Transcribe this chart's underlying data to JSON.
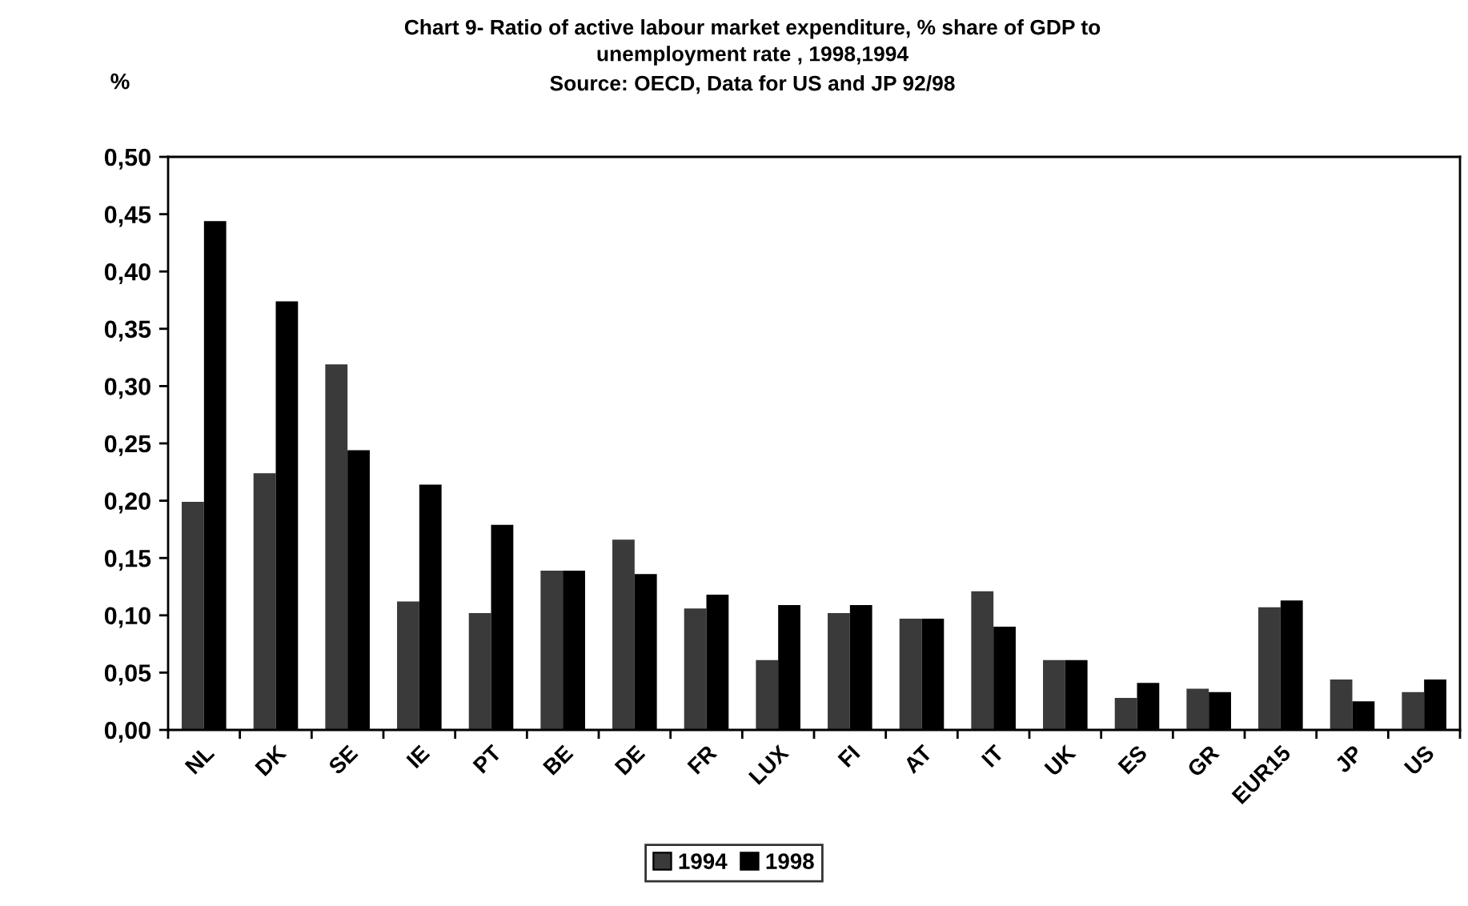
{
  "chart_data": {
    "type": "bar",
    "title": "Chart 9- Ratio of active labour market expenditure, % share of GDP to\nunemployment rate , 1998,1994",
    "subtitle": "Source: OECD, Data for US and JP 92/98",
    "ylabel": "%",
    "categories": [
      "NL",
      "DK",
      "SE",
      "IE",
      "PT",
      "BE",
      "DE",
      "FR",
      "LUX",
      "FI",
      "AT",
      "IT",
      "UK",
      "ES",
      "GR",
      "EUR15",
      "JP",
      "US"
    ],
    "series": [
      {
        "name": "1994",
        "color": "#3a3a3a",
        "values": [
          0.199,
          0.224,
          0.319,
          0.112,
          0.102,
          0.139,
          0.166,
          0.106,
          0.061,
          0.102,
          0.097,
          0.121,
          0.061,
          0.028,
          0.036,
          0.107,
          0.044,
          0.033
        ]
      },
      {
        "name": "1998",
        "color": "#000000",
        "values": [
          0.444,
          0.374,
          0.244,
          0.214,
          0.179,
          0.139,
          0.136,
          0.118,
          0.109,
          0.109,
          0.097,
          0.09,
          0.061,
          0.041,
          0.033,
          0.113,
          0.025,
          0.044
        ]
      }
    ],
    "ylim": [
      0,
      0.5
    ],
    "yticks": [
      {
        "value": 0,
        "label": "0,00"
      },
      {
        "value": 0.05,
        "label": "0,05"
      },
      {
        "value": 0.1,
        "label": "0,10"
      },
      {
        "value": 0.15,
        "label": "0,15"
      },
      {
        "value": 0.2,
        "label": "0,20"
      },
      {
        "value": 0.25,
        "label": "0,25"
      },
      {
        "value": 0.3,
        "label": "0,30"
      },
      {
        "value": 0.35,
        "label": "0,35"
      },
      {
        "value": 0.4,
        "label": "0,40"
      },
      {
        "value": 0.45,
        "label": "0,45"
      },
      {
        "value": 0.5,
        "label": "0,50"
      }
    ],
    "grid": false,
    "legend": "bottom"
  }
}
